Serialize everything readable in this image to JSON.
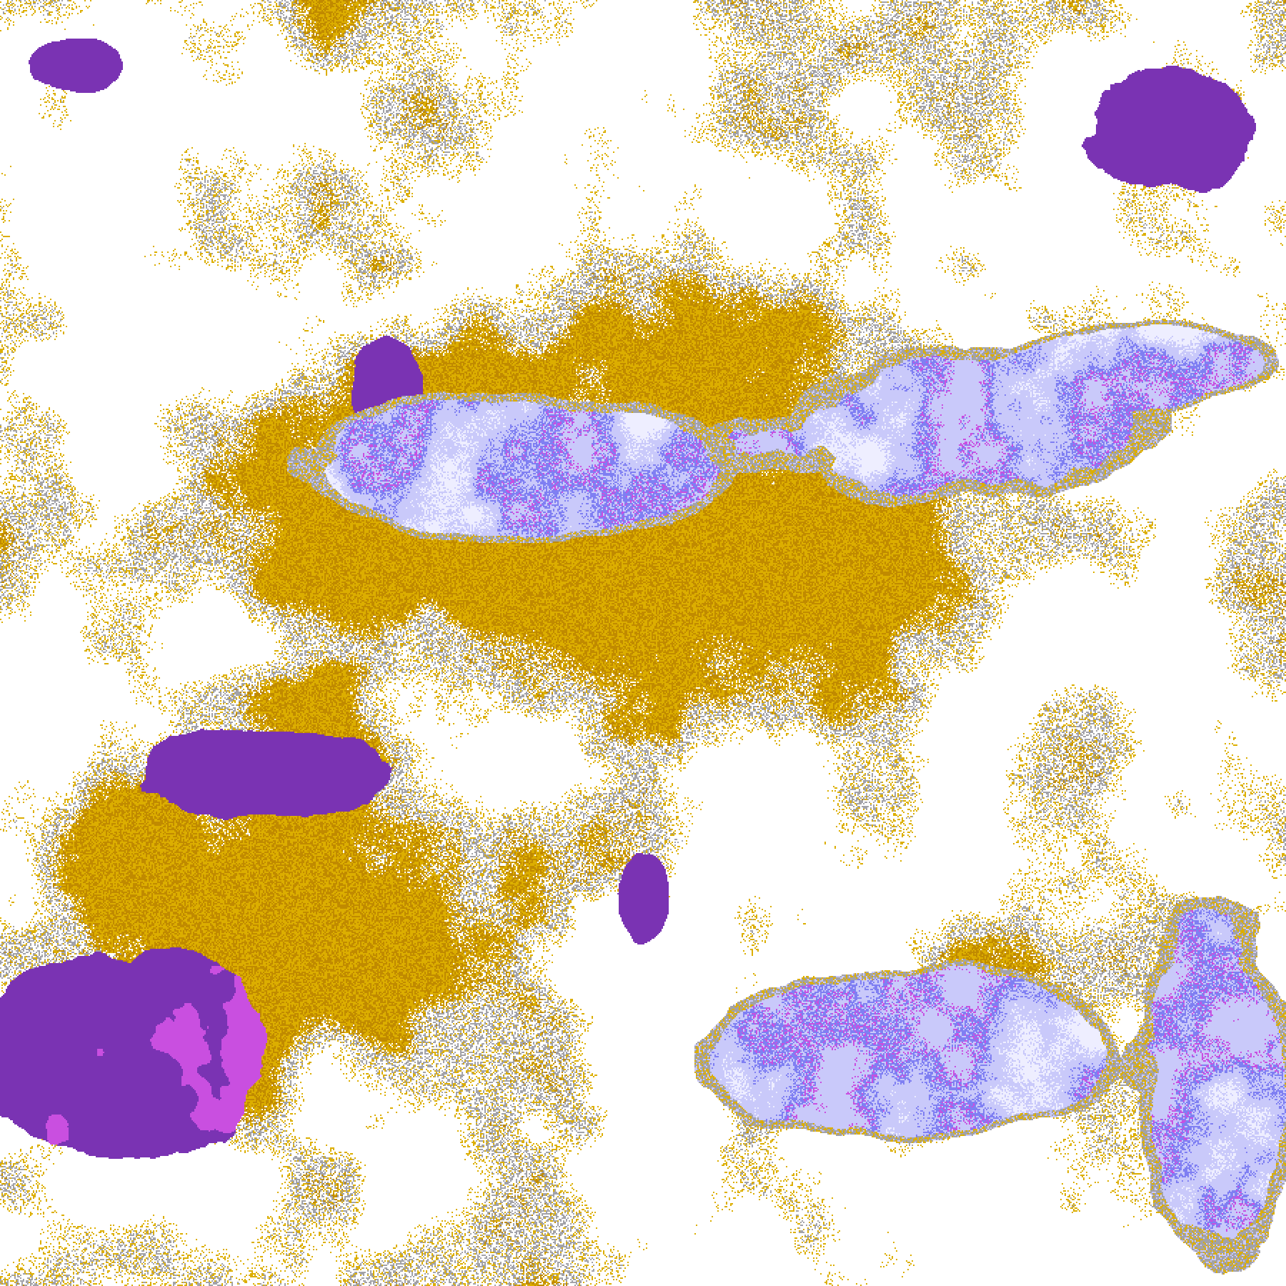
{
  "image": {
    "kind": "classified raster map",
    "palette": {
      "clear": "#ffffff",
      "gold": "#dcae00",
      "dark_gold": "#c08a00",
      "purple": "#7a33b3",
      "magenta": "#c94fe0",
      "gray": "#a2a2a8",
      "light_lavender": "#c9c9fa",
      "pale_lavender": "#eeeeff",
      "blue_violet": "#7f7ff2"
    }
  }
}
